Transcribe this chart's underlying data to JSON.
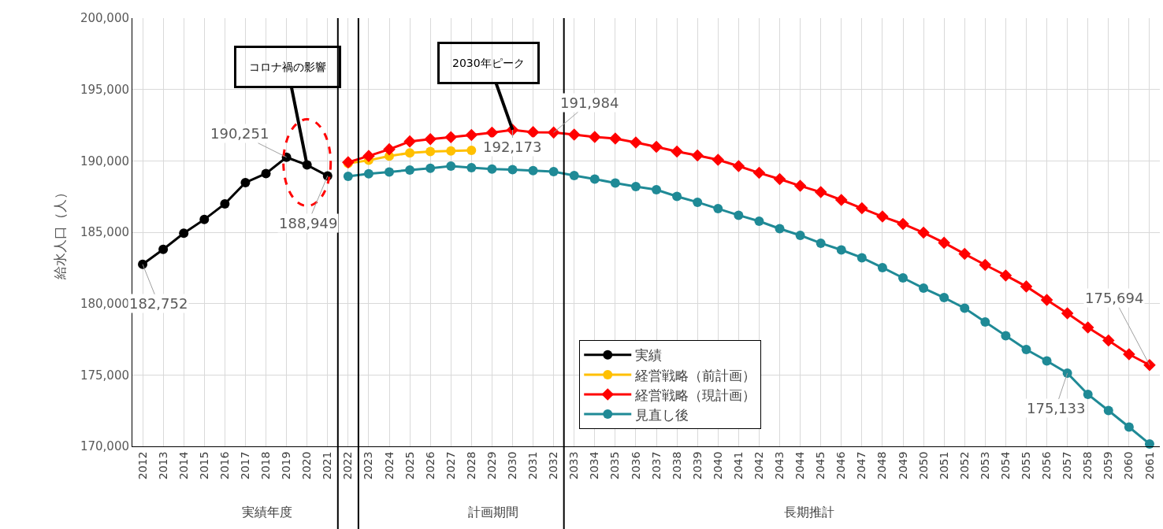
{
  "chart_data": {
    "type": "line",
    "ylabel": "給水人口（人）",
    "x": [
      2012,
      2013,
      2014,
      2015,
      2016,
      2017,
      2018,
      2019,
      2020,
      2021,
      2022,
      2023,
      2024,
      2025,
      2026,
      2027,
      2028,
      2029,
      2030,
      2031,
      2032,
      2033,
      2034,
      2035,
      2036,
      2037,
      2038,
      2039,
      2040,
      2041,
      2042,
      2043,
      2044,
      2045,
      2046,
      2047,
      2048,
      2049,
      2050,
      2051,
      2052,
      2053,
      2054,
      2055,
      2056,
      2057,
      2058,
      2059,
      2060,
      2061
    ],
    "xlim": [
      2011.5,
      2061.5
    ],
    "xticks": [
      2012,
      2013,
      2014,
      2015,
      2016,
      2017,
      2018,
      2019,
      2020,
      2021,
      2022,
      2023,
      2024,
      2025,
      2026,
      2027,
      2028,
      2029,
      2030,
      2031,
      2032,
      2033,
      2034,
      2035,
      2036,
      2037,
      2038,
      2039,
      2040,
      2041,
      2042,
      2043,
      2044,
      2045,
      2046,
      2047,
      2048,
      2049,
      2050,
      2051,
      2052,
      2053,
      2054,
      2055,
      2056,
      2057,
      2058,
      2059,
      2060,
      2061
    ],
    "ylim": [
      170000,
      200000
    ],
    "yticks": [
      {
        "value": 170000,
        "label": "170,000"
      },
      {
        "value": 175000,
        "label": "175,000"
      },
      {
        "value": 180000,
        "label": "180,000"
      },
      {
        "value": 185000,
        "label": "185,000"
      },
      {
        "value": 190000,
        "label": "190,000"
      },
      {
        "value": 195000,
        "label": "195,000"
      },
      {
        "value": 200000,
        "label": "200,000"
      }
    ],
    "grid": true,
    "legend": "bottom",
    "series": [
      {
        "name": "実績",
        "color": "#000000",
        "marker": "circle",
        "values": [
          182752,
          183800,
          184930,
          185890,
          186990,
          188480,
          189110,
          190251,
          189710,
          188949,
          null,
          null,
          null,
          null,
          null,
          null,
          null,
          null,
          null,
          null,
          null,
          null,
          null,
          null,
          null,
          null,
          null,
          null,
          null,
          null,
          null,
          null,
          null,
          null,
          null,
          null,
          null,
          null,
          null,
          null,
          null,
          null,
          null,
          null,
          null,
          null,
          null,
          null,
          null,
          null
        ],
        "value_labels": [
          "182,752",
          null,
          null,
          null,
          null,
          null,
          null,
          "190,251",
          null,
          "188,949",
          null,
          null,
          null,
          null,
          null,
          null,
          null,
          null,
          null,
          null,
          null,
          null,
          null,
          null,
          null,
          null,
          null,
          null,
          null,
          null,
          null,
          null,
          null,
          null,
          null,
          null,
          null,
          null,
          null,
          null,
          null,
          null,
          null,
          null,
          null,
          null,
          null,
          null,
          null,
          null
        ]
      },
      {
        "name": "経営戦略（前計画）",
        "color": "#ffc000",
        "marker": "circle",
        "values": [
          null,
          null,
          null,
          null,
          null,
          null,
          null,
          null,
          null,
          null,
          189830,
          190040,
          190340,
          190550,
          190650,
          190690,
          190730,
          null,
          null,
          null,
          null,
          null,
          null,
          null,
          null,
          null,
          null,
          null,
          null,
          null,
          null,
          null,
          null,
          null,
          null,
          null,
          null,
          null,
          null,
          null,
          null,
          null,
          null,
          null,
          null,
          null,
          null,
          null,
          null,
          null
        ]
      },
      {
        "name": "経営戦略（現計画）",
        "color": "#ff0000",
        "marker": "diamond",
        "values": [
          null,
          null,
          null,
          null,
          null,
          null,
          null,
          null,
          null,
          null,
          189900,
          190340,
          190810,
          191360,
          191520,
          191660,
          191810,
          191980,
          192173,
          192010,
          191984,
          191840,
          191670,
          191560,
          191290,
          190980,
          190650,
          190380,
          190070,
          189630,
          189160,
          188720,
          188250,
          187810,
          187260,
          186680,
          186100,
          185580,
          184970,
          184260,
          183480,
          182710,
          181970,
          181200,
          180260,
          179320,
          178330,
          177420,
          176450,
          175694
        ],
        "value_labels": [
          null,
          null,
          null,
          null,
          null,
          null,
          null,
          null,
          null,
          null,
          null,
          null,
          null,
          null,
          null,
          null,
          null,
          null,
          "192,173",
          null,
          "191,984",
          null,
          null,
          null,
          null,
          null,
          null,
          null,
          null,
          null,
          null,
          null,
          null,
          null,
          null,
          null,
          null,
          null,
          null,
          null,
          null,
          null,
          null,
          null,
          null,
          null,
          null,
          null,
          null,
          "175,694"
        ]
      },
      {
        "name": "見直し後",
        "color": "#1f8a96",
        "marker": "circle",
        "values": [
          null,
          null,
          null,
          null,
          null,
          null,
          null,
          null,
          null,
          null,
          188920,
          189100,
          189220,
          189360,
          189480,
          189630,
          189520,
          189420,
          189380,
          189320,
          189250,
          188970,
          188720,
          188450,
          188200,
          187980,
          187510,
          187100,
          186650,
          186190,
          185770,
          185250,
          184780,
          184230,
          183760,
          183210,
          182520,
          181800,
          181080,
          180420,
          179680,
          178710,
          177750,
          176780,
          175980,
          175133,
          173640,
          172510,
          171350,
          170170
        ],
        "value_labels": [
          null,
          null,
          null,
          null,
          null,
          null,
          null,
          null,
          null,
          null,
          null,
          null,
          null,
          null,
          null,
          null,
          null,
          null,
          null,
          null,
          null,
          null,
          null,
          null,
          null,
          null,
          null,
          null,
          null,
          null,
          null,
          null,
          null,
          null,
          null,
          null,
          null,
          null,
          null,
          null,
          null,
          null,
          null,
          null,
          null,
          "175,133",
          null,
          null,
          null,
          null
        ]
      }
    ],
    "ref_lines": [
      {
        "axis": "x",
        "value": 2021.5,
        "color": "#000000"
      },
      {
        "axis": "x",
        "value": 2022.5,
        "color": "#000000"
      },
      {
        "axis": "x",
        "value": 2032.5,
        "color": "#000000"
      }
    ],
    "annotations": [
      {
        "text": "コロナ禍の影響",
        "x": 2020,
        "y": 189710
      },
      {
        "text": "2030年ピーク",
        "x": 2030,
        "y": 192173
      },
      "実績年度",
      "計画期間",
      "長期推計"
    ]
  }
}
